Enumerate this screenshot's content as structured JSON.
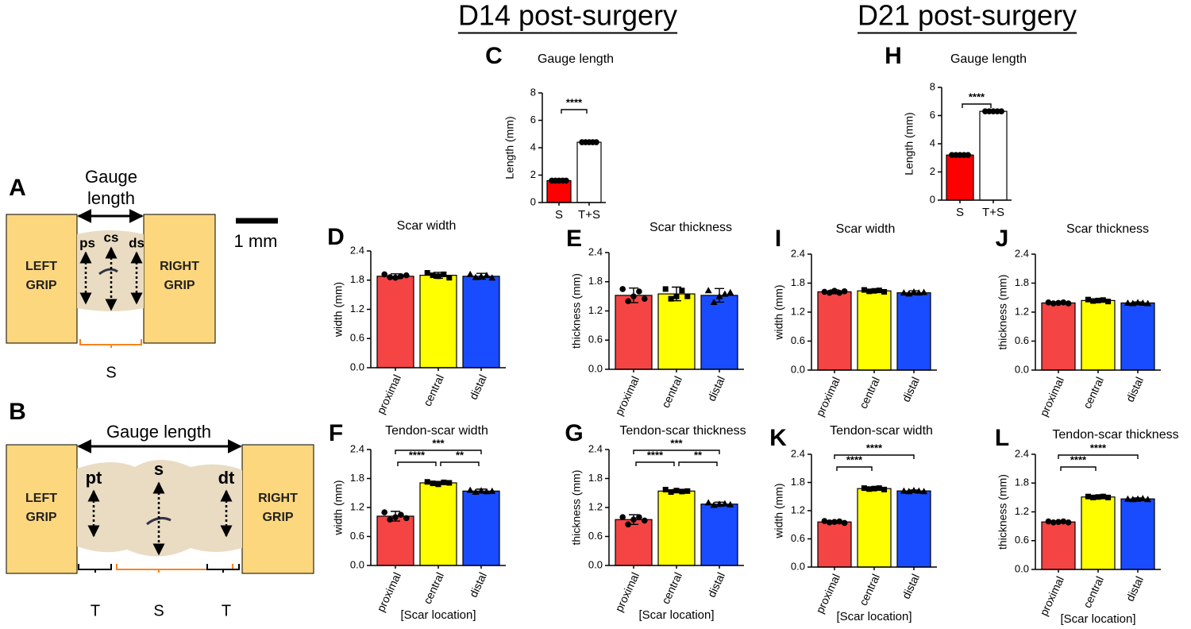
{
  "headers": [
    "D14 post-surgery",
    "D21 post-surgery"
  ],
  "diagram": {
    "a": {
      "letter": "A",
      "gauge_lines": [
        "Gauge",
        "length"
      ],
      "left_grip": [
        "LEFT",
        "GRIP"
      ],
      "right_grip": [
        "RIGHT",
        "GRIP"
      ],
      "marks": [
        "ps",
        "cs",
        "ds"
      ],
      "scale": "1 mm",
      "segment": "S"
    },
    "b": {
      "letter": "B",
      "gauge": "Gauge length",
      "left_grip": [
        "LEFT",
        "GRIP"
      ],
      "right_grip": [
        "RIGHT",
        "GRIP"
      ],
      "marks": [
        "pt",
        "s",
        "dt"
      ],
      "segments": [
        "T",
        "S",
        "T"
      ]
    }
  },
  "chart_data": [
    {
      "type": "bar",
      "panel": "C",
      "title": "Gauge length",
      "ylabel": "Length (mm)",
      "categories": [
        "S",
        "T+S"
      ],
      "values": [
        1.6,
        4.4
      ],
      "errors": [
        0.03,
        0.03
      ],
      "points": [
        [
          1.6,
          1.6,
          1.6,
          1.6,
          1.6
        ],
        [
          4.4,
          4.4,
          4.4,
          4.4,
          4.4
        ]
      ],
      "colors": [
        "#ff0000",
        "#ffffff"
      ],
      "markers": [
        "circle",
        "circle"
      ],
      "ylim": [
        0,
        8
      ],
      "yticks": [
        0,
        2,
        4,
        6,
        8
      ],
      "comparisons": [
        {
          "pair": [
            0,
            1
          ],
          "label": "****"
        }
      ]
    },
    {
      "type": "bar",
      "panel": "H",
      "title": "Gauge length",
      "ylabel": "Length (mm)",
      "categories": [
        "S",
        "T+S"
      ],
      "values": [
        3.2,
        6.3
      ],
      "errors": [
        0.03,
        0.03
      ],
      "points": [
        [
          3.2,
          3.2,
          3.2,
          3.2,
          3.2
        ],
        [
          6.3,
          6.3,
          6.3,
          6.3,
          6.3
        ]
      ],
      "colors": [
        "#ff0000",
        "#ffffff"
      ],
      "markers": [
        "circle",
        "circle"
      ],
      "ylim": [
        0,
        8
      ],
      "yticks": [
        0,
        2,
        4,
        6,
        8
      ],
      "comparisons": [
        {
          "pair": [
            0,
            1
          ],
          "label": "****"
        }
      ]
    },
    {
      "type": "bar",
      "panel": "D",
      "title": "Scar width",
      "ylabel": "width (mm)",
      "categories": [
        "proximal",
        "central",
        "distal"
      ],
      "values": [
        1.88,
        1.9,
        1.88
      ],
      "errors": [
        0.05,
        0.06,
        0.06
      ],
      "points": [
        [
          1.92,
          1.86,
          1.85,
          1.88,
          1.9
        ],
        [
          1.95,
          1.9,
          1.88,
          1.92,
          1.85
        ],
        [
          1.92,
          1.86,
          1.88,
          1.9,
          1.85
        ]
      ],
      "colors": [
        "#f44444",
        "#ffff00",
        "#1a4cff"
      ],
      "markers": [
        "circle",
        "square",
        "triangle"
      ],
      "ylim": [
        0,
        2.4
      ],
      "yticks": [
        {
          "value": 0,
          "label": "0.0"
        },
        0.6,
        1.2,
        1.8,
        2.4
      ],
      "comparisons": []
    },
    {
      "type": "bar",
      "panel": "E",
      "title": "Scar thickness",
      "ylabel": "thickness (mm)",
      "categories": [
        "proximal",
        "central",
        "distal"
      ],
      "values": [
        1.52,
        1.55,
        1.52
      ],
      "errors": [
        0.15,
        0.14,
        0.14
      ],
      "points": [
        [
          1.65,
          1.4,
          1.5,
          1.6,
          1.45
        ],
        [
          1.65,
          1.45,
          1.5,
          1.62,
          1.5
        ],
        [
          1.62,
          1.38,
          1.5,
          1.55,
          1.58
        ]
      ],
      "colors": [
        "#f44444",
        "#ffff00",
        "#1a4cff"
      ],
      "markers": [
        "circle",
        "square",
        "triangle"
      ],
      "ylim": [
        0,
        2.4
      ],
      "yticks": [
        {
          "value": 0,
          "label": "0.0"
        },
        0.6,
        1.2,
        1.8,
        2.4
      ],
      "comparisons": []
    },
    {
      "type": "bar",
      "panel": "I",
      "title": "Scar width",
      "ylabel": "width (mm)",
      "categories": [
        "proximal",
        "central",
        "distal"
      ],
      "values": [
        1.62,
        1.64,
        1.6
      ],
      "errors": [
        0.04,
        0.03,
        0.04
      ],
      "points": [
        [
          1.62,
          1.6,
          1.64,
          1.6,
          1.63
        ],
        [
          1.66,
          1.63,
          1.64,
          1.65,
          1.62
        ],
        [
          1.6,
          1.58,
          1.62,
          1.6,
          1.61
        ]
      ],
      "colors": [
        "#f44444",
        "#ffff00",
        "#1a4cff"
      ],
      "markers": [
        "circle",
        "square",
        "triangle"
      ],
      "ylim": [
        0,
        2.4
      ],
      "yticks": [
        {
          "value": 0,
          "label": "0.0"
        },
        0.6,
        1.2,
        1.8,
        2.4
      ],
      "comparisons": []
    },
    {
      "type": "bar",
      "panel": "J",
      "title": "Scar thickness",
      "ylabel": "thickness (mm)",
      "categories": [
        "proximal",
        "central",
        "distal"
      ],
      "values": [
        1.39,
        1.44,
        1.39
      ],
      "errors": [
        0.02,
        0.03,
        0.02
      ],
      "points": [
        [
          1.4,
          1.38,
          1.39,
          1.4,
          1.38
        ],
        [
          1.46,
          1.43,
          1.44,
          1.45,
          1.42
        ],
        [
          1.39,
          1.38,
          1.4,
          1.39,
          1.38
        ]
      ],
      "colors": [
        "#f44444",
        "#ffff00",
        "#1a4cff"
      ],
      "markers": [
        "circle",
        "square",
        "triangle"
      ],
      "ylim": [
        0,
        2.4
      ],
      "yticks": [
        {
          "value": 0,
          "label": "0.0"
        },
        0.6,
        1.2,
        1.8,
        2.4
      ],
      "comparisons": []
    },
    {
      "type": "bar",
      "panel": "F",
      "title": "Tendon-scar width",
      "ylabel": "width (mm)",
      "xlabel": "[Scar location]",
      "categories": [
        "proximal",
        "central",
        "distal"
      ],
      "values": [
        1.02,
        1.71,
        1.54
      ],
      "errors": [
        0.1,
        0.03,
        0.04
      ],
      "points": [
        [
          1.1,
          0.95,
          1.0,
          1.05,
          0.98
        ],
        [
          1.73,
          1.7,
          1.68,
          1.72,
          1.71
        ],
        [
          1.56,
          1.52,
          1.55,
          1.53,
          1.54
        ]
      ],
      "colors": [
        "#f44444",
        "#ffff00",
        "#1a4cff"
      ],
      "markers": [
        "circle",
        "square",
        "triangle"
      ],
      "ylim": [
        0,
        2.4
      ],
      "yticks": [
        {
          "value": 0,
          "label": "0.0"
        },
        0.6,
        1.2,
        1.8,
        2.4
      ],
      "comparisons": [
        {
          "pair": [
            0,
            1
          ],
          "label": "****"
        },
        {
          "pair": [
            1,
            2
          ],
          "label": "**"
        },
        {
          "pair": [
            0,
            2
          ],
          "label": "***"
        }
      ]
    },
    {
      "type": "bar",
      "panel": "G",
      "title": "Tendon-scar thickness",
      "ylabel": "thickness (mm)",
      "xlabel": "[Scar location]",
      "categories": [
        "proximal",
        "central",
        "distal"
      ],
      "values": [
        0.95,
        1.54,
        1.27
      ],
      "errors": [
        0.1,
        0.03,
        0.04
      ],
      "points": [
        [
          1.0,
          0.85,
          0.95,
          1.0,
          0.93
        ],
        [
          1.57,
          1.52,
          1.55,
          1.53,
          1.54
        ],
        [
          1.3,
          1.25,
          1.27,
          1.28,
          1.26
        ]
      ],
      "colors": [
        "#f44444",
        "#ffff00",
        "#1a4cff"
      ],
      "markers": [
        "circle",
        "square",
        "triangle"
      ],
      "ylim": [
        0,
        2.4
      ],
      "yticks": [
        {
          "value": 0,
          "label": "0.0"
        },
        0.6,
        1.2,
        1.8,
        2.4
      ],
      "comparisons": [
        {
          "pair": [
            0,
            1
          ],
          "label": "****"
        },
        {
          "pair": [
            1,
            2
          ],
          "label": "**"
        },
        {
          "pair": [
            0,
            2
          ],
          "label": "***"
        }
      ]
    },
    {
      "type": "bar",
      "panel": "K",
      "title": "Tendon-scar width",
      "ylabel": "width (mm)",
      "xlabel": "[Scar location]",
      "categories": [
        "proximal",
        "central",
        "distal"
      ],
      "values": [
        0.96,
        1.67,
        1.62
      ],
      "errors": [
        0.03,
        0.03,
        0.02
      ],
      "points": [
        [
          0.98,
          0.95,
          0.96,
          0.97,
          0.94
        ],
        [
          1.68,
          1.66,
          1.67,
          1.68,
          1.65
        ],
        [
          1.62,
          1.61,
          1.63,
          1.62,
          1.61
        ]
      ],
      "colors": [
        "#f44444",
        "#ffff00",
        "#1a4cff"
      ],
      "markers": [
        "circle",
        "square",
        "triangle"
      ],
      "ylim": [
        0,
        2.4
      ],
      "yticks": [
        {
          "value": 0,
          "label": "0.0"
        },
        0.6,
        1.2,
        1.8,
        2.4
      ],
      "comparisons": [
        {
          "pair": [
            0,
            1
          ],
          "label": "****"
        },
        {
          "pair": [
            0,
            2
          ],
          "label": "****"
        }
      ]
    },
    {
      "type": "bar",
      "panel": "L",
      "title": "Tendon-scar thickness",
      "ylabel": "thickness (mm)",
      "xlabel": "[Scar location]",
      "categories": [
        "proximal",
        "central",
        "distal"
      ],
      "values": [
        0.99,
        1.51,
        1.47
      ],
      "errors": [
        0.02,
        0.03,
        0.02
      ],
      "points": [
        [
          1.0,
          0.98,
          0.99,
          1.0,
          0.98
        ],
        [
          1.52,
          1.5,
          1.51,
          1.52,
          1.5
        ],
        [
          1.47,
          1.46,
          1.47,
          1.48,
          1.46
        ]
      ],
      "colors": [
        "#f44444",
        "#ffff00",
        "#1a4cff"
      ],
      "markers": [
        "circle",
        "square",
        "triangle"
      ],
      "ylim": [
        0,
        2.4
      ],
      "yticks": [
        {
          "value": 0,
          "label": "0.0"
        },
        0.6,
        1.2,
        1.8,
        2.4
      ],
      "comparisons": [
        {
          "pair": [
            0,
            1
          ],
          "label": "****"
        },
        {
          "pair": [
            0,
            2
          ],
          "label": "****"
        }
      ]
    }
  ]
}
